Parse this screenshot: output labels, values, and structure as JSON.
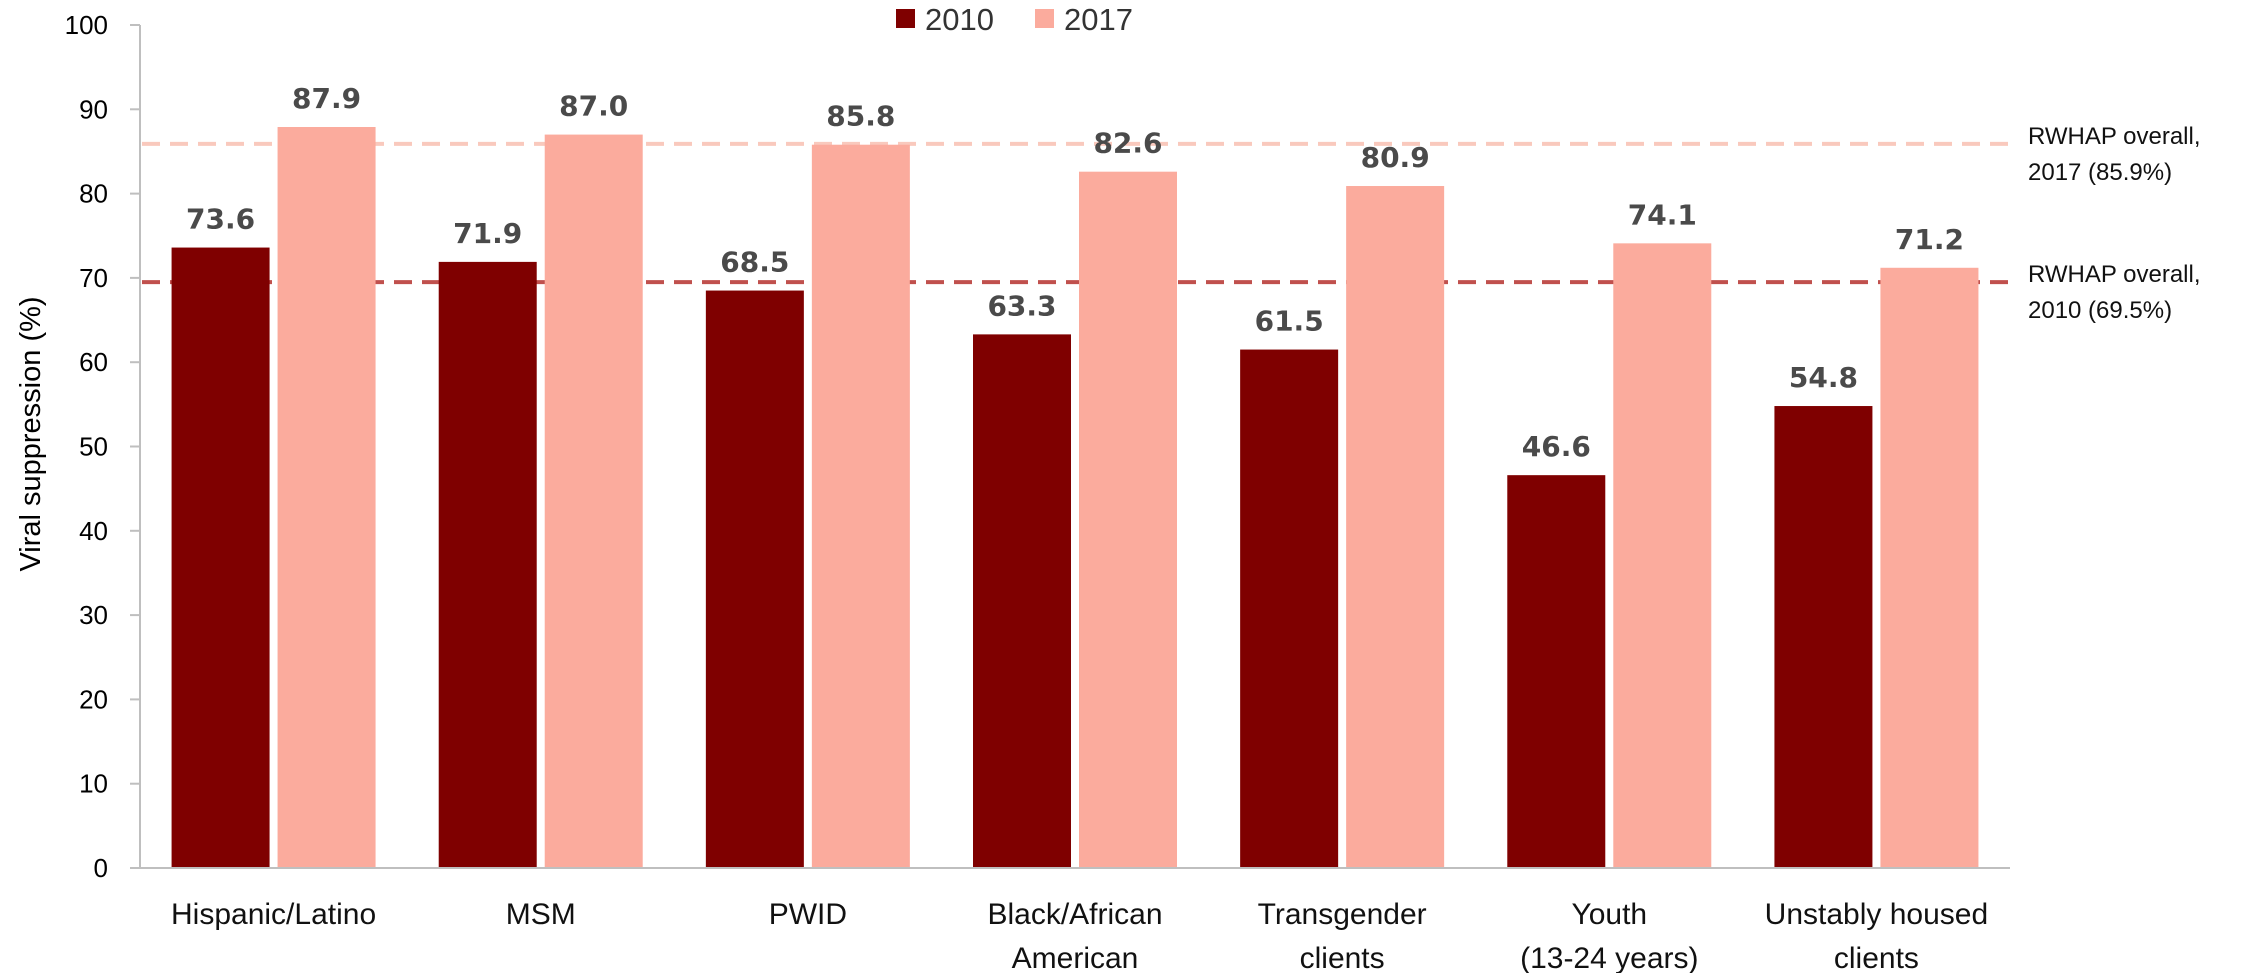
{
  "chart_data": {
    "type": "bar",
    "title": "",
    "xlabel": "",
    "ylabel": "Viral suppression (%)",
    "ylim": [
      0,
      100
    ],
    "yticks": [
      0,
      10,
      20,
      30,
      40,
      50,
      60,
      70,
      80,
      90,
      100
    ],
    "grid": false,
    "legend_position": "top-center",
    "categories": [
      [
        "Hispanic/Latino"
      ],
      [
        "MSM"
      ],
      [
        "PWID"
      ],
      [
        "Black/African",
        "American"
      ],
      [
        "Transgender",
        "clients"
      ],
      [
        "Youth",
        "(13-24 years)"
      ],
      [
        "Unstably housed",
        "clients"
      ]
    ],
    "series": [
      {
        "name": "2010",
        "color": "#7f0000",
        "values": [
          73.6,
          71.9,
          68.5,
          63.3,
          61.5,
          46.6,
          54.8
        ],
        "labels": [
          "73.6",
          "71.9",
          "68.5",
          "63.3",
          "61.5",
          "46.6",
          "54.8"
        ]
      },
      {
        "name": "2017",
        "color": "#fbab9d",
        "values": [
          87.9,
          87.0,
          85.8,
          82.6,
          80.9,
          74.1,
          71.2
        ],
        "labels": [
          "87.9",
          "87.0",
          "85.8",
          "82.6",
          "80.9",
          "74.1",
          "71.2"
        ]
      }
    ],
    "reference_lines": [
      {
        "value": 85.9,
        "color": "#f9c9bd",
        "label": [
          "RWHAP overall,",
          "2017 (85.9%)"
        ]
      },
      {
        "value": 69.5,
        "color": "#c0504d",
        "label": [
          "RWHAP overall,",
          "2010 (69.5%)"
        ]
      }
    ]
  }
}
